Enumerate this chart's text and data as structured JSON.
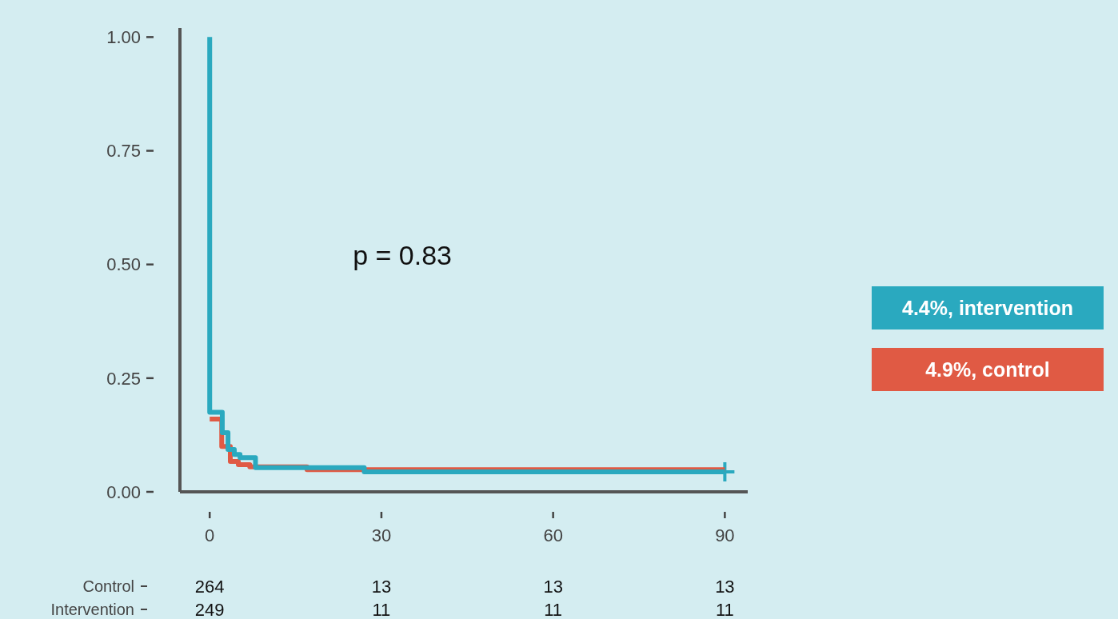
{
  "chart_data": {
    "type": "step",
    "xlim": [
      -5.2,
      94
    ],
    "ylim": [
      0,
      1.02
    ],
    "xticks": [
      0,
      30,
      60,
      90
    ],
    "yticks": [
      {
        "value": 0,
        "label": "0.00"
      },
      {
        "value": 0.25,
        "label": "0.25"
      },
      {
        "value": 0.5,
        "label": "0.50"
      },
      {
        "value": 0.75,
        "label": "0.75"
      },
      {
        "value": 1,
        "label": "1.00"
      }
    ],
    "legend": "right",
    "grid": false,
    "series": [
      {
        "name": "4.4%, intervention",
        "color": "#2aa9bf",
        "x": [
          0,
          0,
          2.2,
          3.2,
          4.3,
          5.3,
          8,
          27,
          90
        ],
        "values": [
          1,
          0.175,
          0.13,
          0.093,
          0.082,
          0.075,
          0.053,
          0.044,
          0.044
        ]
      },
      {
        "name": "4.9%, control",
        "color": "#e05a44",
        "x": [
          0,
          2.1,
          3.6,
          5,
          7,
          17,
          90
        ],
        "values": [
          0.16,
          0.1,
          0.067,
          0.06,
          0.055,
          0.049,
          0.049
        ]
      },
      {
        "type": "scatter",
        "marker": "cross",
        "color": "#2aa9bf",
        "x": [
          90
        ],
        "values": [
          0.044
        ]
      }
    ],
    "annotations": [
      "p = 0.83",
      "Control",
      "264",
      "13",
      "13",
      "13",
      "Intervention",
      "249",
      "11",
      "11",
      "11"
    ]
  }
}
